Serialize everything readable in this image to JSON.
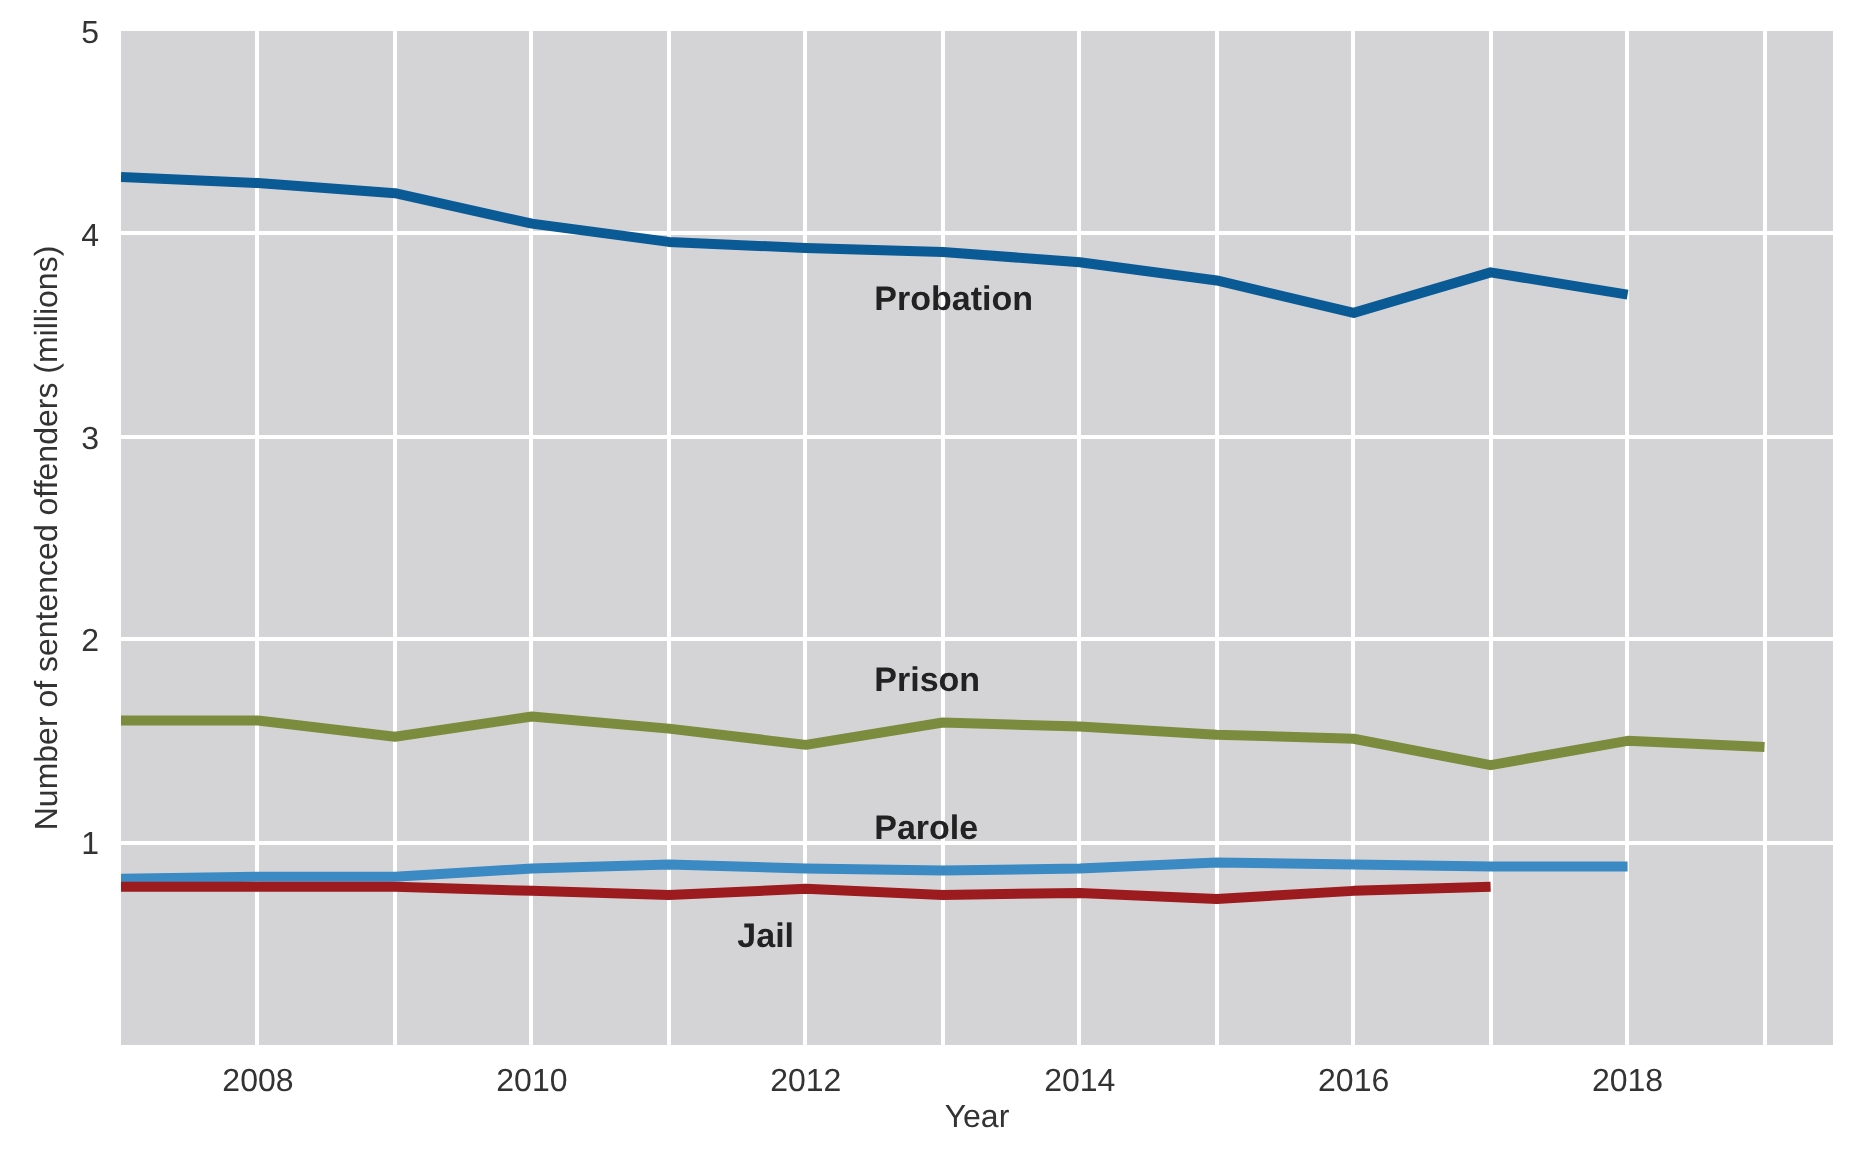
{
  "chart_data": {
    "type": "line",
    "xlabel": "Year",
    "ylabel": "Number of sentenced offenders (millions)",
    "xlim": [
      2007,
      2019.5
    ],
    "ylim": [
      0,
      5
    ],
    "xticks": [
      {
        "value": 2007,
        "label": null
      },
      2008,
      {
        "value": 2009,
        "label": null
      },
      2010,
      {
        "value": 2011,
        "label": null
      },
      2012,
      {
        "value": 2013,
        "label": null
      },
      2014,
      {
        "value": 2015,
        "label": null
      },
      2016,
      {
        "value": 2017,
        "label": null
      },
      2018,
      {
        "value": 2019,
        "label": null
      }
    ],
    "yticks": [
      1,
      2,
      3,
      4,
      5
    ],
    "grid": true,
    "legend": false,
    "marker": "none",
    "line_style": "solid",
    "series": [
      {
        "name": "Probation",
        "color": "#0a5a96",
        "x": [
          2007,
          2008,
          2009,
          2010,
          2011,
          2012,
          2013,
          2014,
          2015,
          2016,
          2017,
          2018
        ],
        "values": [
          4.28,
          4.25,
          4.2,
          4.05,
          3.96,
          3.93,
          3.91,
          3.86,
          3.77,
          3.61,
          3.81,
          3.7
        ]
      },
      {
        "name": "Prison",
        "color": "#7b8c3e",
        "x": [
          2007,
          2008,
          2009,
          2010,
          2011,
          2012,
          2013,
          2014,
          2015,
          2016,
          2017,
          2018,
          2019
        ],
        "values": [
          1.6,
          1.6,
          1.52,
          1.62,
          1.56,
          1.48,
          1.59,
          1.57,
          1.53,
          1.51,
          1.38,
          1.5,
          1.47
        ]
      },
      {
        "name": "Parole",
        "color": "#3b8ac4",
        "x": [
          2007,
          2008,
          2009,
          2010,
          2011,
          2012,
          2013,
          2014,
          2015,
          2016,
          2017,
          2018
        ],
        "values": [
          0.82,
          0.83,
          0.83,
          0.87,
          0.89,
          0.87,
          0.86,
          0.87,
          0.9,
          0.89,
          0.88,
          0.88
        ]
      },
      {
        "name": "Jail",
        "color": "#9b1b1e",
        "x": [
          2007,
          2008,
          2009,
          2010,
          2011,
          2012,
          2013,
          2014,
          2015,
          2016,
          2017
        ],
        "values": [
          0.78,
          0.78,
          0.78,
          0.76,
          0.74,
          0.77,
          0.74,
          0.75,
          0.72,
          0.76,
          0.78
        ]
      }
    ]
  }
}
